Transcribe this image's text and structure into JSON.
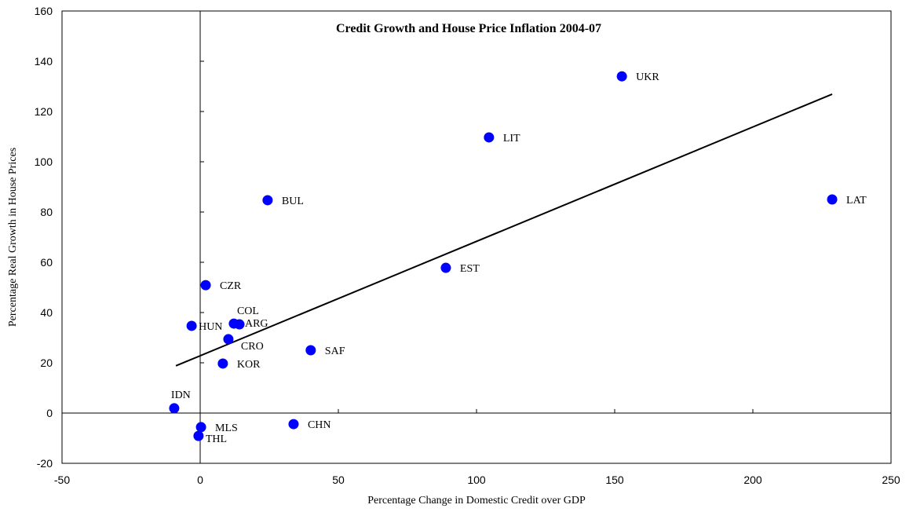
{
  "chart_data": {
    "type": "scatter",
    "title": "Credit Growth and House Price Inflation 2004-07",
    "x_label": "Percentage Change in Domestic Credit over GDP",
    "y_label": "Percentage Real Growth in House Prices",
    "labels": [
      "UKR",
      "LIT",
      "LAT",
      "BUL",
      "EST",
      "CZR",
      "COL",
      "ARG",
      "HUN",
      "CRO",
      "SAF",
      "KOR",
      "IDN",
      "MLS",
      "THL",
      "CHN"
    ],
    "x": [
      152.6,
      104.5,
      228.7,
      24.4,
      88.9,
      2,
      12.2,
      14.2,
      -3.1,
      10.2,
      40,
      8.2,
      -9.4,
      0.3,
      -0.6,
      33.8
    ],
    "y": [
      134,
      109.7,
      85,
      84.7,
      57.8,
      50.9,
      35.6,
      35.3,
      34.7,
      29.4,
      25,
      19.7,
      1.9,
      -5.6,
      -9.1,
      -4.4
    ],
    "color": "#0000ff",
    "trendline": {
      "x": [
        -8.8,
        228.7
      ],
      "y": [
        18.8,
        126.9
      ],
      "color": "#000000"
    },
    "xlim": [
      -50,
      250
    ],
    "xticks": [
      -50,
      0,
      50,
      100,
      150,
      200,
      250
    ],
    "ylim": [
      -20,
      160
    ],
    "yticks": [
      -20,
      0,
      20,
      40,
      60,
      80,
      100,
      120,
      140,
      160
    ]
  }
}
